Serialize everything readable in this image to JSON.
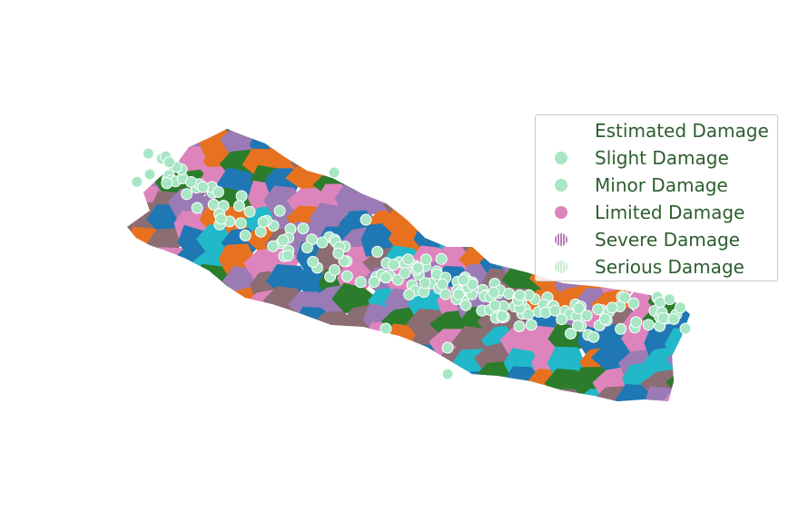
{
  "legend": {
    "title": "Estimated Damage",
    "items": [
      {
        "label": "Slight Damage",
        "color": "#a8e6c4",
        "style": "solid"
      },
      {
        "label": "Minor Damage",
        "color": "#a8e6c4",
        "style": "solid"
      },
      {
        "label": "Limited Damage",
        "color": "#de84bd",
        "style": "solid"
      },
      {
        "label": "Severe Damage",
        "color": "#b77fb8",
        "style": "hatched"
      },
      {
        "label": "Serious Damage",
        "color": "#c9ecd2",
        "style": "hatched"
      }
    ]
  },
  "palette": {
    "district_colors": [
      "#1f77b4",
      "#e8711f",
      "#2b7d2b",
      "#8c6d74",
      "#21b8ca",
      "#de84bd",
      "#9b7bb5"
    ],
    "point_fill": "#a8e6c4",
    "point_stroke": "#ffffff",
    "text_color": "#2e5e2e"
  }
}
